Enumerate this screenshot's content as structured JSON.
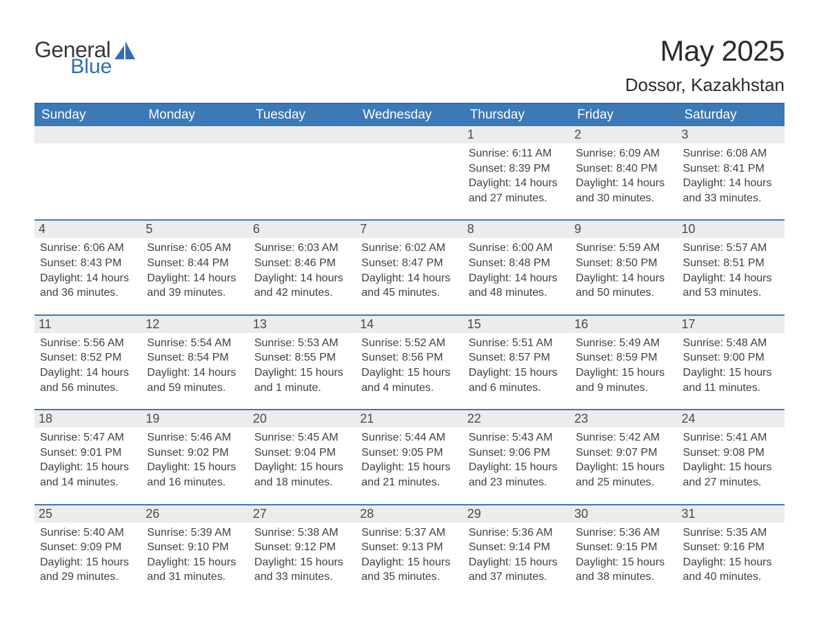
{
  "logo": {
    "word1": "General",
    "word2": "Blue",
    "mark_color": "#2f6fb3",
    "text_color": "#3a3a3a"
  },
  "title": "May 2025",
  "location": "Dossor, Kazakhstan",
  "styling": {
    "header_bg": "#3b79b7",
    "header_text": "#ffffff",
    "row_border": "#3b79b7",
    "daynum_bg": "#ececec",
    "body_text": "#404040",
    "page_bg": "#ffffff",
    "month_title_fontsize": 42,
    "location_fontsize": 26,
    "dayheader_fontsize": 19,
    "daynum_fontsize": 18,
    "cell_fontsize": 16
  },
  "day_headers": [
    "Sunday",
    "Monday",
    "Tuesday",
    "Wednesday",
    "Thursday",
    "Friday",
    "Saturday"
  ],
  "weeks": [
    [
      {
        "blank": true
      },
      {
        "blank": true
      },
      {
        "blank": true
      },
      {
        "blank": true
      },
      {
        "n": "1",
        "sr": "6:11 AM",
        "ss": "8:39 PM",
        "dl": "14 hours and 27 minutes."
      },
      {
        "n": "2",
        "sr": "6:09 AM",
        "ss": "8:40 PM",
        "dl": "14 hours and 30 minutes."
      },
      {
        "n": "3",
        "sr": "6:08 AM",
        "ss": "8:41 PM",
        "dl": "14 hours and 33 minutes."
      }
    ],
    [
      {
        "n": "4",
        "sr": "6:06 AM",
        "ss": "8:43 PM",
        "dl": "14 hours and 36 minutes."
      },
      {
        "n": "5",
        "sr": "6:05 AM",
        "ss": "8:44 PM",
        "dl": "14 hours and 39 minutes."
      },
      {
        "n": "6",
        "sr": "6:03 AM",
        "ss": "8:46 PM",
        "dl": "14 hours and 42 minutes."
      },
      {
        "n": "7",
        "sr": "6:02 AM",
        "ss": "8:47 PM",
        "dl": "14 hours and 45 minutes."
      },
      {
        "n": "8",
        "sr": "6:00 AM",
        "ss": "8:48 PM",
        "dl": "14 hours and 48 minutes."
      },
      {
        "n": "9",
        "sr": "5:59 AM",
        "ss": "8:50 PM",
        "dl": "14 hours and 50 minutes."
      },
      {
        "n": "10",
        "sr": "5:57 AM",
        "ss": "8:51 PM",
        "dl": "14 hours and 53 minutes."
      }
    ],
    [
      {
        "n": "11",
        "sr": "5:56 AM",
        "ss": "8:52 PM",
        "dl": "14 hours and 56 minutes."
      },
      {
        "n": "12",
        "sr": "5:54 AM",
        "ss": "8:54 PM",
        "dl": "14 hours and 59 minutes."
      },
      {
        "n": "13",
        "sr": "5:53 AM",
        "ss": "8:55 PM",
        "dl": "15 hours and 1 minute."
      },
      {
        "n": "14",
        "sr": "5:52 AM",
        "ss": "8:56 PM",
        "dl": "15 hours and 4 minutes."
      },
      {
        "n": "15",
        "sr": "5:51 AM",
        "ss": "8:57 PM",
        "dl": "15 hours and 6 minutes."
      },
      {
        "n": "16",
        "sr": "5:49 AM",
        "ss": "8:59 PM",
        "dl": "15 hours and 9 minutes."
      },
      {
        "n": "17",
        "sr": "5:48 AM",
        "ss": "9:00 PM",
        "dl": "15 hours and 11 minutes."
      }
    ],
    [
      {
        "n": "18",
        "sr": "5:47 AM",
        "ss": "9:01 PM",
        "dl": "15 hours and 14 minutes."
      },
      {
        "n": "19",
        "sr": "5:46 AM",
        "ss": "9:02 PM",
        "dl": "15 hours and 16 minutes."
      },
      {
        "n": "20",
        "sr": "5:45 AM",
        "ss": "9:04 PM",
        "dl": "15 hours and 18 minutes."
      },
      {
        "n": "21",
        "sr": "5:44 AM",
        "ss": "9:05 PM",
        "dl": "15 hours and 21 minutes."
      },
      {
        "n": "22",
        "sr": "5:43 AM",
        "ss": "9:06 PM",
        "dl": "15 hours and 23 minutes."
      },
      {
        "n": "23",
        "sr": "5:42 AM",
        "ss": "9:07 PM",
        "dl": "15 hours and 25 minutes."
      },
      {
        "n": "24",
        "sr": "5:41 AM",
        "ss": "9:08 PM",
        "dl": "15 hours and 27 minutes."
      }
    ],
    [
      {
        "n": "25",
        "sr": "5:40 AM",
        "ss": "9:09 PM",
        "dl": "15 hours and 29 minutes."
      },
      {
        "n": "26",
        "sr": "5:39 AM",
        "ss": "9:10 PM",
        "dl": "15 hours and 31 minutes."
      },
      {
        "n": "27",
        "sr": "5:38 AM",
        "ss": "9:12 PM",
        "dl": "15 hours and 33 minutes."
      },
      {
        "n": "28",
        "sr": "5:37 AM",
        "ss": "9:13 PM",
        "dl": "15 hours and 35 minutes."
      },
      {
        "n": "29",
        "sr": "5:36 AM",
        "ss": "9:14 PM",
        "dl": "15 hours and 37 minutes."
      },
      {
        "n": "30",
        "sr": "5:36 AM",
        "ss": "9:15 PM",
        "dl": "15 hours and 38 minutes."
      },
      {
        "n": "31",
        "sr": "5:35 AM",
        "ss": "9:16 PM",
        "dl": "15 hours and 40 minutes."
      }
    ]
  ],
  "labels": {
    "sunrise": "Sunrise: ",
    "sunset": "Sunset: ",
    "daylight": "Daylight: "
  }
}
